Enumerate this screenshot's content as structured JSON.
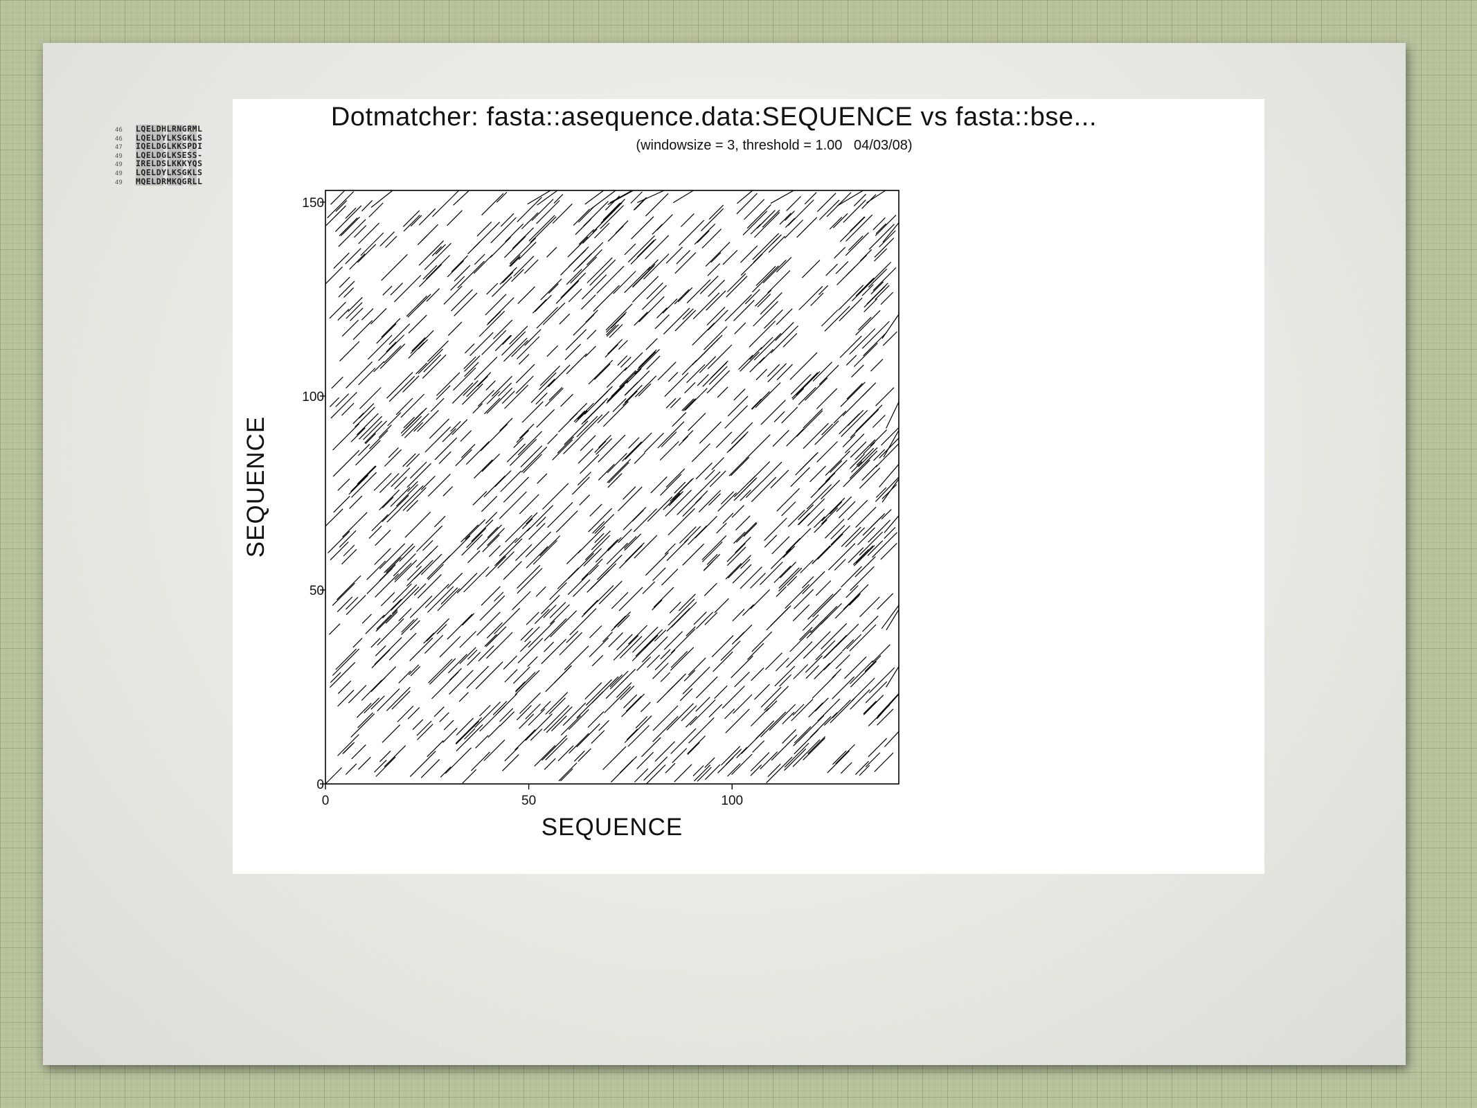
{
  "alignment": {
    "rows": [
      {
        "num": "46",
        "seq": "LQELDHLRNGRML"
      },
      {
        "num": "46",
        "seq": "LQELDYLKSGKLS"
      },
      {
        "num": "47",
        "seq": "IQELDGLKKSPDI"
      },
      {
        "num": "49",
        "seq": "LQELDGLKSESS-"
      },
      {
        "num": "49",
        "seq": "IRELDSLKKKYQS"
      },
      {
        "num": "49",
        "seq": "LQELDYLKSGKLS"
      },
      {
        "num": "49",
        "seq": "MQELDRMKQGRLL"
      }
    ]
  },
  "chart_data": {
    "type": "scatter",
    "title": "Dotmatcher: fasta::asequence.data:SEQUENCE vs fasta::bse...",
    "subtitle": "(windowsize = 3, threshold = 1.00   04/03/08)",
    "xlabel": "SEQUENCE",
    "ylabel": "SEQUENCE",
    "xlim": [
      0,
      141
    ],
    "ylim": [
      0,
      153
    ],
    "xticks": [
      "0",
      "50",
      "100"
    ],
    "yticks": [
      "0",
      "50",
      "100",
      "150"
    ],
    "grid": false,
    "description": "Diagonal dot-match segments (window 3) filling the sequence comparison matrix",
    "segments": [
      [
        0,
        0,
        4
      ],
      [
        12,
        3,
        3
      ],
      [
        25,
        7,
        4
      ],
      [
        40,
        12,
        3
      ],
      [
        55,
        18,
        4
      ],
      [
        70,
        25,
        3
      ],
      [
        85,
        30,
        4
      ],
      [
        100,
        36,
        3
      ],
      [
        115,
        42,
        4
      ],
      [
        128,
        48,
        3
      ],
      [
        3,
        20,
        4
      ],
      [
        18,
        26,
        3
      ],
      [
        33,
        31,
        4
      ],
      [
        48,
        37,
        3
      ],
      [
        63,
        43,
        4
      ],
      [
        78,
        49,
        3
      ],
      [
        93,
        55,
        4
      ],
      [
        108,
        61,
        3
      ],
      [
        122,
        67,
        4
      ],
      [
        5,
        45,
        3
      ],
      [
        20,
        51,
        4
      ],
      [
        35,
        57,
        3
      ],
      [
        50,
        63,
        4
      ],
      [
        65,
        69,
        3
      ],
      [
        80,
        75,
        4
      ],
      [
        95,
        81,
        3
      ],
      [
        110,
        87,
        4
      ],
      [
        125,
        93,
        3
      ],
      [
        2,
        70,
        4
      ],
      [
        17,
        76,
        3
      ],
      [
        32,
        82,
        4
      ],
      [
        47,
        88,
        3
      ],
      [
        62,
        94,
        4
      ],
      [
        77,
        100,
        3
      ],
      [
        92,
        106,
        4
      ],
      [
        107,
        112,
        3
      ],
      [
        122,
        118,
        4
      ],
      [
        4,
        95,
        3
      ],
      [
        19,
        101,
        4
      ],
      [
        34,
        107,
        3
      ],
      [
        49,
        113,
        4
      ],
      [
        64,
        119,
        3
      ],
      [
        79,
        125,
        4
      ],
      [
        94,
        131,
        3
      ],
      [
        109,
        137,
        4
      ],
      [
        124,
        143,
        3
      ],
      [
        1,
        120,
        4
      ],
      [
        16,
        126,
        3
      ],
      [
        31,
        132,
        4
      ],
      [
        46,
        138,
        3
      ],
      [
        61,
        144,
        4
      ],
      [
        76,
        148,
        3
      ]
    ]
  }
}
